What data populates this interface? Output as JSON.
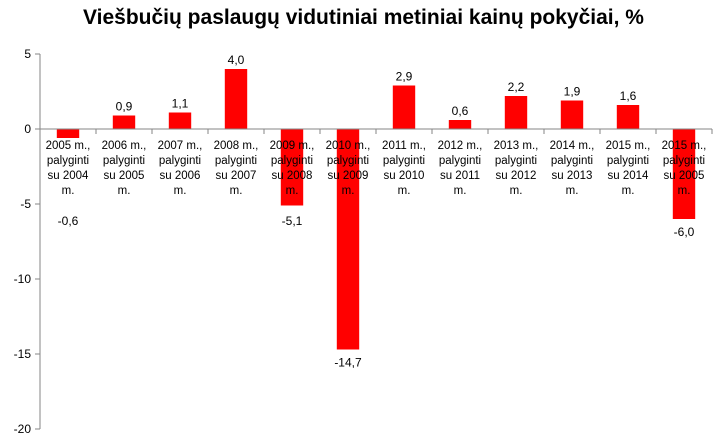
{
  "chart_data": {
    "type": "bar",
    "title": "Viešbučių paslaugų vidutiniai metiniai kainų pokyčiai, %",
    "xlabel": "",
    "ylabel": "",
    "ylim": [
      -20,
      5
    ],
    "yticks": [
      5,
      0,
      -5,
      -10,
      -15,
      -20
    ],
    "grid": false,
    "bar_color": "#ff0000",
    "categories": [
      [
        "2005 m.,",
        "palyginti",
        "su 2004",
        "m."
      ],
      [
        "2006 m.,",
        "palyginti",
        "su 2005",
        "m."
      ],
      [
        "2007 m.,",
        "palyginti",
        "su 2006",
        "m."
      ],
      [
        "2008 m.,",
        "palyginti",
        "su 2007",
        "m."
      ],
      [
        "2009 m.,",
        "palyginti",
        "su 2008",
        "m."
      ],
      [
        "2010 m.,",
        "palyginti",
        "su 2009",
        "m."
      ],
      [
        "2011 m.,",
        "palyginti",
        "su 2010",
        "m."
      ],
      [
        "2012 m.,",
        "palyginti",
        "su 2011",
        "m."
      ],
      [
        "2013 m.,",
        "palyginti",
        "su 2012",
        "m."
      ],
      [
        "2014 m.,",
        "palyginti",
        "su 2013",
        "m."
      ],
      [
        "2015 m.,",
        "palyginti",
        "su 2014",
        "m."
      ],
      [
        "2015 m.,",
        "palyginti",
        "su 2005",
        "m."
      ]
    ],
    "values": [
      -0.6,
      0.9,
      1.1,
      4.0,
      -5.1,
      -14.7,
      2.9,
      0.6,
      2.2,
      1.9,
      1.6,
      -6.0
    ],
    "value_labels": [
      "-0,6",
      "0,9",
      "1,1",
      "4,0",
      "-5,1",
      "-14,7",
      "2,9",
      "0,6",
      "2,2",
      "1,9",
      "1,6",
      "-6,0"
    ]
  }
}
